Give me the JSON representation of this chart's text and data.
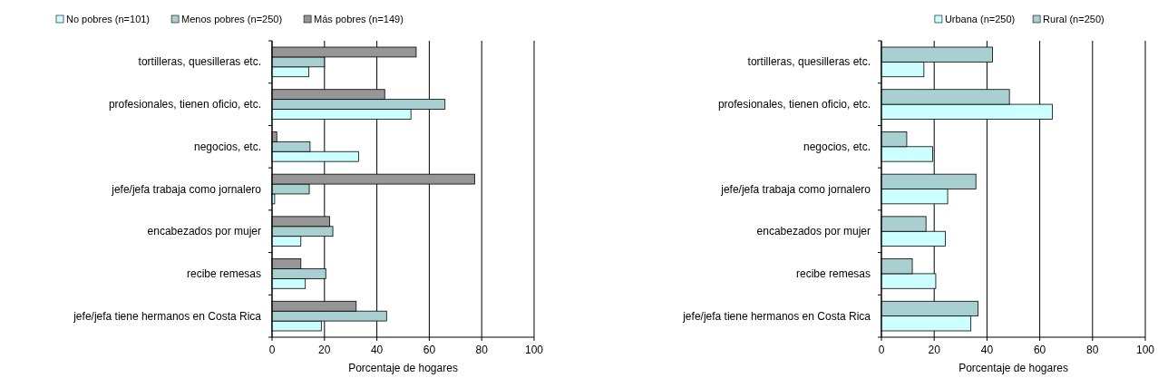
{
  "chart_data": [
    {
      "type": "bar",
      "orientation": "horizontal",
      "categories": [
        "tortilleras, quesilleras etc.",
        "profesionales, tienen oficio, etc.",
        "negocios, etc.",
        "jefe/jefa trabaja como jornalero",
        "encabezados por mujer",
        "recibe remesas",
        "jefe/jefa tiene hermanos en Costa Rica"
      ],
      "series": [
        {
          "name": "No pobres (n=101)",
          "color": "#ccffff",
          "values": [
            14,
            53,
            33,
            1,
            11,
            12.7,
            18.8
          ]
        },
        {
          "name": "Menos pobres (n=250)",
          "color": "#a8d0d0",
          "values": [
            20,
            66,
            14.5,
            14.2,
            23.2,
            20.5,
            43.7
          ]
        },
        {
          "name": "Más pobres (n=149)",
          "color": "#969696",
          "values": [
            55,
            43,
            1.8,
            77.3,
            22,
            11,
            32.1
          ]
        }
      ],
      "xlabel": "Porcentaje de hogares",
      "xlim": [
        0,
        100
      ],
      "xticks": [
        0,
        20,
        40,
        60,
        80,
        100
      ],
      "grid": "x",
      "legend": "top left"
    },
    {
      "type": "bar",
      "orientation": "horizontal",
      "categories": [
        "tortilleras, quesilleras etc.",
        "profesionales, tienen oficio, etc.",
        "negocios, etc.",
        "jefe/jefa trabaja como jornalero",
        "encabezados por mujer",
        "recibe remesas",
        "jefe/jefa tiene hermanos en Costa Rica"
      ],
      "series": [
        {
          "name": "Urbana (n=250)",
          "color": "#ccffff",
          "values": [
            16.1,
            64.8,
            19.4,
            25.1,
            24.2,
            20.6,
            33.9
          ]
        },
        {
          "name": "Rural (n=250)",
          "color": "#a8d0d0",
          "values": [
            42.1,
            48.5,
            9.6,
            35.8,
            16.9,
            11.7,
            36.6
          ]
        }
      ],
      "xlabel": "Porcentaje de hogares",
      "xlim": [
        0,
        100
      ],
      "xticks": [
        0,
        20,
        40,
        60,
        80,
        100
      ],
      "grid": "x",
      "legend": "top right"
    }
  ]
}
